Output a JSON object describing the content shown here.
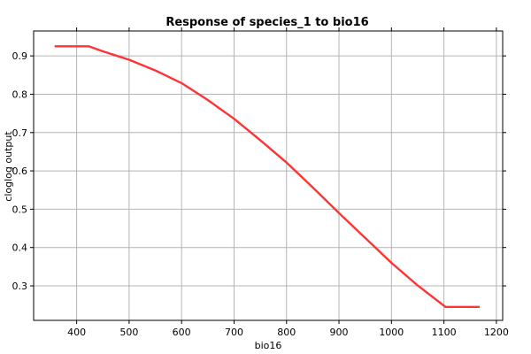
{
  "chart_data": {
    "type": "line",
    "title": "Response of species_1 to bio16",
    "xlabel": "bio16",
    "ylabel": "cloglog output",
    "xlim": [
      318,
      1212
    ],
    "ylim": [
      0.21,
      0.965
    ],
    "x_ticks": [
      400,
      500,
      600,
      700,
      800,
      900,
      1000,
      1100,
      1200
    ],
    "y_ticks": [
      0.3,
      0.4,
      0.5,
      0.6,
      0.7,
      0.8,
      0.9
    ],
    "grid": true,
    "series": [
      {
        "color": "#ff3333",
        "x": [
          358,
          423,
          450,
          500,
          550,
          600,
          650,
          700,
          750,
          800,
          850,
          900,
          950,
          1000,
          1050,
          1103,
          1168
        ],
        "y": [
          0.925,
          0.925,
          0.912,
          0.89,
          0.862,
          0.829,
          0.785,
          0.736,
          0.68,
          0.622,
          0.557,
          0.49,
          0.425,
          0.36,
          0.301,
          0.245,
          0.245
        ]
      }
    ]
  }
}
